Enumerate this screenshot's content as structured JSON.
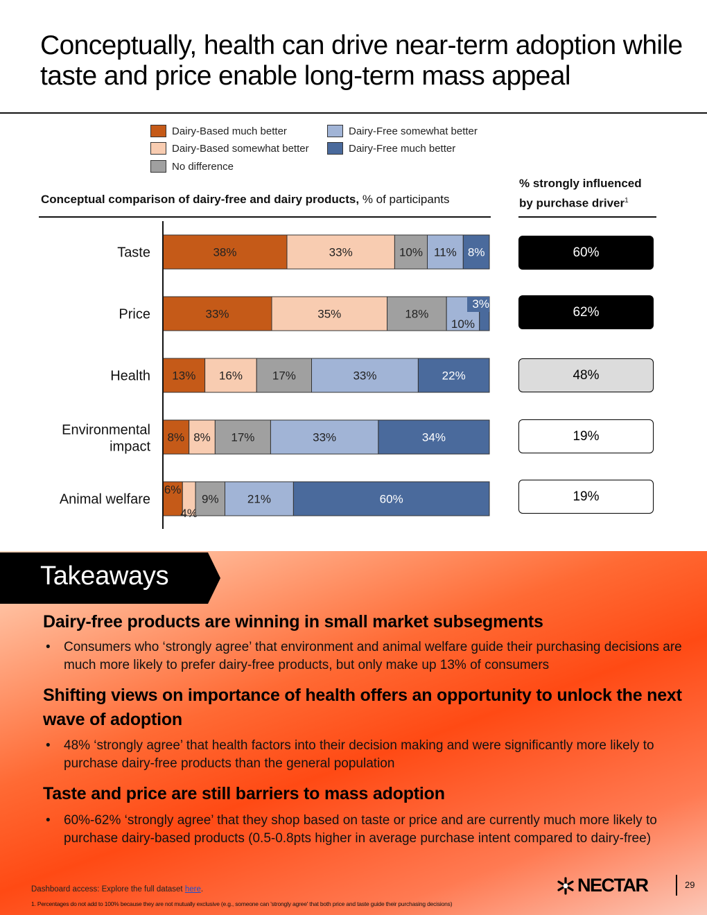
{
  "title": "Conceptually, health can drive near-term adoption while taste and price enable long-term mass appeal",
  "colors": {
    "dairy_based_much": "#c55a18",
    "dairy_based_somewhat": "#f8ccb1",
    "no_difference": "#a0a0a0",
    "dairy_free_somewhat": "#a1b4d6",
    "dairy_free_much": "#4a6a9c"
  },
  "legend": [
    {
      "label": "Dairy-Based much better",
      "color": "#c55a18"
    },
    {
      "label": "Dairy-Based somewhat better",
      "color": "#f8ccb1"
    },
    {
      "label": "No difference",
      "color": "#a0a0a0"
    },
    {
      "label": "Dairy-Free somewhat better",
      "color": "#a1b4d6"
    },
    {
      "label": "Dairy-Free much better",
      "color": "#4a6a9c"
    }
  ],
  "chart_title_bold": "Conceptual comparison of dairy-free and dairy products,",
  "chart_title_rest": " % of participants",
  "driver_header": "% strongly influenced by purchase driver",
  "driver_header_sup": "1",
  "chart_data": {
    "type": "bar",
    "orientation": "horizontal",
    "stacked": true,
    "categories": [
      "Taste",
      "Price",
      "Health",
      "Environmental impact",
      "Animal welfare"
    ],
    "series": [
      {
        "name": "Dairy-Based much better",
        "values": [
          38,
          33,
          13,
          8,
          6
        ]
      },
      {
        "name": "Dairy-Based somewhat better",
        "values": [
          33,
          35,
          16,
          8,
          4
        ]
      },
      {
        "name": "No difference",
        "values": [
          10,
          18,
          17,
          17,
          9
        ]
      },
      {
        "name": "Dairy-Free somewhat better",
        "values": [
          11,
          10,
          33,
          33,
          21
        ]
      },
      {
        "name": "Dairy-Free much better",
        "values": [
          8,
          3,
          22,
          34,
          60
        ]
      }
    ],
    "driver_values": [
      "60%",
      "62%",
      "48%",
      "19%",
      "19%"
    ],
    "driver_styles": [
      "dark",
      "dark",
      "light-grey",
      "white",
      "white"
    ]
  },
  "takeaways": {
    "label": "Takeaways",
    "items": [
      {
        "heading": "Dairy-free products are winning in small market subsegments",
        "bullet": "Consumers who ‘strongly agree’ that environment and animal welfare guide their purchasing decisions are much more likely to prefer dairy-free products, but only make up 13% of consumers"
      },
      {
        "heading": "Shifting views on importance of health offers an opportunity to unlock the next wave of adoption",
        "bullet": "48% ‘strongly agree’ that health factors into their decision making and were significantly more likely to purchase dairy-free products than the general population"
      },
      {
        "heading": "Taste and price are still barriers to mass adoption",
        "bullet": "60%-62% ‘strongly agree’ that they shop based on taste or price and are currently much more likely to purchase dairy-based products (0.5-0.8pts higher in average purchase intent compared to dairy-free)"
      }
    ]
  },
  "bullet_char": "•",
  "dashboard_prefix": "Dashboard access: Explore the full dataset ",
  "dashboard_link": "here",
  "dashboard_suffix": ".",
  "footnote": "1.    Percentages do not add to 100% because they are not mutually exclusive (e.g., someone can 'strongly agree' that both price and taste guide their purchasing decisions)",
  "logo_text": "NECTAR",
  "logo_icon": "nectar-star-icon",
  "page_number": "29"
}
